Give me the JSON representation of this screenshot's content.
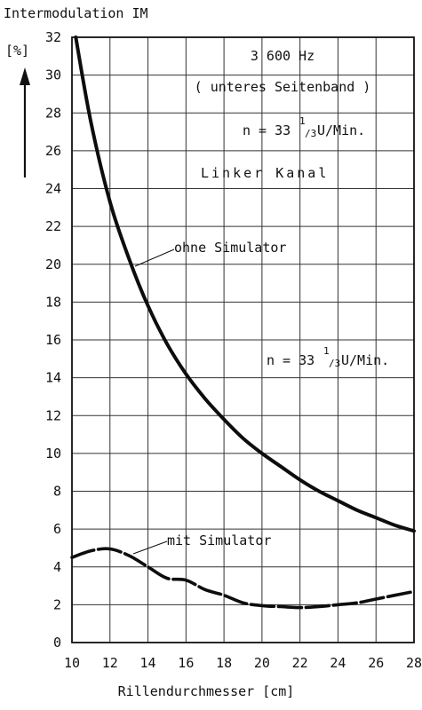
{
  "chart_data": {
    "type": "line",
    "title": "Intermodulation IM",
    "ylabel": "[%]",
    "xlabel": "Rillendurchmesser [cm]",
    "xlim": [
      10,
      28
    ],
    "ylim": [
      0,
      32
    ],
    "x_ticks": [
      10,
      12,
      14,
      16,
      18,
      20,
      22,
      24,
      26,
      28
    ],
    "y_ticks": [
      0,
      2,
      4,
      6,
      8,
      10,
      12,
      14,
      16,
      18,
      20,
      22,
      24,
      26,
      28,
      30,
      32
    ],
    "grid": true,
    "series": [
      {
        "name": "ohne Simulator",
        "style": "solid",
        "x": [
          10.2,
          11,
          12,
          13,
          14,
          15,
          16,
          17,
          18,
          19,
          20,
          21,
          22,
          23,
          24,
          25,
          26,
          27,
          28
        ],
        "y": [
          32,
          27.5,
          23.3,
          20.3,
          17.8,
          15.8,
          14.2,
          12.9,
          11.8,
          10.8,
          10.0,
          9.3,
          8.6,
          8.0,
          7.5,
          7.0,
          6.6,
          6.2,
          5.9
        ]
      },
      {
        "name": "mit Simulator",
        "style": "dashed",
        "x": [
          10,
          11,
          12,
          13,
          14,
          15,
          16,
          17,
          18,
          19,
          20,
          21,
          22,
          23,
          24,
          25,
          26,
          27,
          28
        ],
        "y": [
          4.5,
          4.85,
          4.95,
          4.6,
          4.0,
          3.4,
          3.3,
          2.8,
          2.5,
          2.1,
          1.95,
          1.9,
          1.85,
          1.9,
          2.0,
          2.1,
          2.3,
          2.5,
          2.7
        ]
      }
    ],
    "annotations": {
      "frequency": "3 600 Hz",
      "band": "( unteres Seitenband )",
      "speed_prefix": "n = 33",
      "speed_frac_num": "1",
      "speed_frac_den": "/3",
      "speed_suffix": " U/Min.",
      "channel": "Linker Kanal",
      "speed2_prefix": "n = 33",
      "speed2_frac_num": "1",
      "speed2_frac_den": "/3",
      "speed2_suffix": " U/Min."
    }
  }
}
